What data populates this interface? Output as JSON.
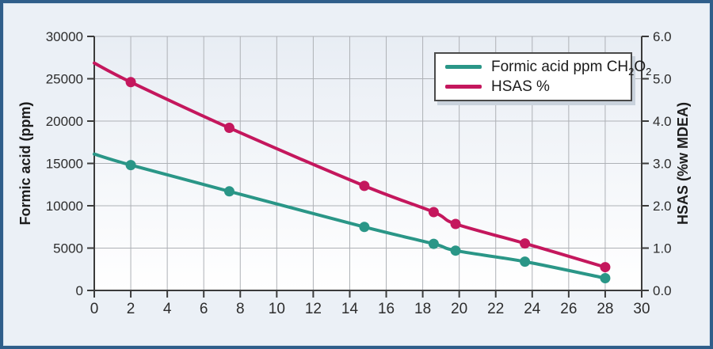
{
  "figure": {
    "background": "#EBF0F6",
    "border_color": "#2F5E8A",
    "plot_bg_top": "#E8EDF4",
    "plot_bg_bottom": "#FFFFFF",
    "grid_color": "#AEB1B6",
    "spine_color": "#3B3B3B"
  },
  "chart_data": {
    "type": "line",
    "title": "",
    "grid": "on",
    "legend_position": "top-right-inside",
    "x_axis": {
      "label": "",
      "min": 0,
      "max": 30,
      "ticks": [
        0,
        2,
        4,
        6,
        8,
        10,
        12,
        14,
        16,
        18,
        20,
        22,
        24,
        26,
        28,
        30
      ]
    },
    "y_axis_left": {
      "label": "Formic acid (ppm)",
      "min": 0,
      "max": 30000,
      "ticks": [
        0,
        5000,
        10000,
        15000,
        20000,
        25000,
        30000
      ]
    },
    "y_axis_right": {
      "label": "HSAS (%w MDEA)",
      "min": 0,
      "max": 6,
      "ticks": [
        "0.0",
        "1.0",
        "2.0",
        "3.0",
        "4.0",
        "5.0",
        "6.0"
      ]
    },
    "series": [
      {
        "name": "Formic acid ppm CH2O2",
        "legend_parts": [
          {
            "text": "Formic acid ppm CH"
          },
          {
            "text": "2",
            "sub": true
          },
          {
            "text": "O"
          },
          {
            "text": "2",
            "sub": true
          }
        ],
        "axis": "left",
        "color": "#2A9687",
        "points": [
          {
            "x": 0,
            "y": 16100,
            "marker": false
          },
          {
            "x": 2,
            "y": 14800
          },
          {
            "x": 7.4,
            "y": 11700
          },
          {
            "x": 14.8,
            "y": 7500
          },
          {
            "x": 18.6,
            "y": 5500
          },
          {
            "x": 19.8,
            "y": 4700
          },
          {
            "x": 23.6,
            "y": 3400
          },
          {
            "x": 28,
            "y": 1450
          }
        ]
      },
      {
        "name": "HSAS %",
        "legend_parts": [
          {
            "text": "HSAS %"
          }
        ],
        "axis": "right",
        "color": "#C4175D",
        "points": [
          {
            "x": 0,
            "y": 5.37,
            "marker": false
          },
          {
            "x": 2,
            "y": 4.92
          },
          {
            "x": 7.4,
            "y": 3.84
          },
          {
            "x": 14.8,
            "y": 2.47
          },
          {
            "x": 18.6,
            "y": 1.85
          },
          {
            "x": 19.8,
            "y": 1.57
          },
          {
            "x": 23.6,
            "y": 1.11
          },
          {
            "x": 28,
            "y": 0.55
          }
        ]
      }
    ]
  }
}
